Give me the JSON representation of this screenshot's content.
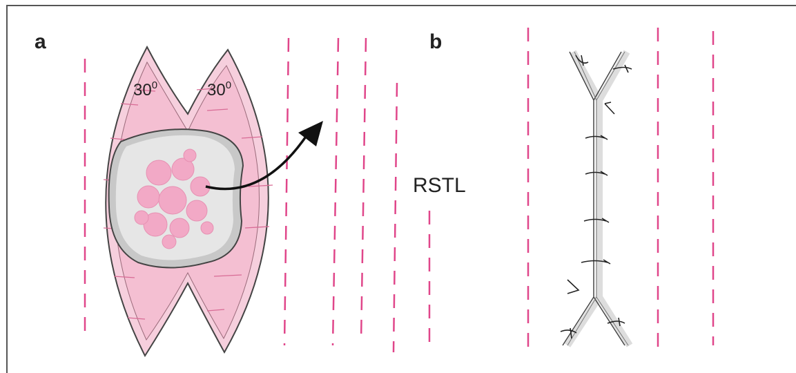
{
  "panels": [
    {
      "label": "a",
      "angles": [
        {
          "base": "30",
          "sup": "0"
        },
        {
          "base": "30",
          "sup": "0"
        }
      ]
    },
    {
      "label": "b"
    }
  ],
  "rstl": "RSTL"
}
